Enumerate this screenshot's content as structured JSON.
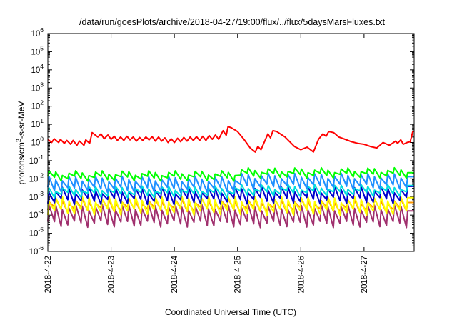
{
  "chart_data": {
    "type": "line",
    "title": "/data/run/goesPlots/archive/2018-04-27/19:00/flux/../flux/5daysMarsFluxes.txt",
    "xlabel": "Coordinated Universal Time (UTC)",
    "ylabel": "protons/cm²-s-sr-MeV",
    "y_scale": "log",
    "ylim_exponent": [
      -6,
      6
    ],
    "y_tick_base": "10",
    "y_tick_exponents": [
      "-6",
      "-5",
      "-4",
      "-3",
      "-2",
      "-1",
      "0",
      "1",
      "2",
      "3",
      "4",
      "5",
      "6"
    ],
    "xlim": [
      "2018-04-22T00:00",
      "2018-04-27T19:00"
    ],
    "x_tick_labels": [
      "2018-4-22",
      "2018-4-23",
      "2018-4-24",
      "2018-4-25",
      "2018-4-26",
      "2018-4-27"
    ],
    "grid": false,
    "legend": "none",
    "series": [
      {
        "color": "#ff0000",
        "x": [
          0.0,
          0.06,
          0.1,
          0.17,
          0.2,
          0.26,
          0.3,
          0.36,
          0.4,
          0.46,
          0.5,
          0.57,
          0.6,
          0.66,
          0.7,
          0.79,
          0.84,
          0.89,
          0.95,
          1.0,
          1.05,
          1.1,
          1.15,
          1.2,
          1.25,
          1.3,
          1.35,
          1.4,
          1.45,
          1.5,
          1.55,
          1.6,
          1.65,
          1.7,
          1.75,
          1.8,
          1.85,
          1.9,
          1.95,
          2.0,
          2.05,
          2.1,
          2.15,
          2.2,
          2.25,
          2.3,
          2.35,
          2.4,
          2.45,
          2.5,
          2.55,
          2.6,
          2.65,
          2.7,
          2.77,
          2.82,
          2.85,
          2.9,
          3.0,
          3.1,
          3.2,
          3.28,
          3.32,
          3.37,
          3.48,
          3.52,
          3.56,
          3.62,
          3.75,
          3.9,
          4.0,
          4.1,
          4.2,
          4.28,
          4.35,
          4.4,
          4.44,
          4.52,
          4.6,
          4.7,
          4.8,
          4.9,
          5.0,
          5.1,
          5.2,
          5.3,
          5.4,
          5.5,
          5.53,
          5.58,
          5.62,
          5.68,
          5.73,
          5.77,
          5.79
        ],
        "values": [
          1.5,
          1.0,
          1.6,
          1.0,
          1.5,
          0.9,
          1.3,
          0.8,
          1.3,
          0.7,
          1.2,
          0.7,
          1.4,
          0.9,
          3.5,
          2.0,
          3.0,
          1.6,
          2.6,
          1.5,
          2.2,
          1.3,
          2.0,
          1.3,
          2.2,
          1.4,
          2.0,
          1.2,
          1.9,
          1.3,
          2.0,
          1.4,
          2.1,
          1.2,
          2.0,
          1.2,
          1.8,
          1.0,
          1.6,
          1.0,
          1.7,
          1.1,
          1.9,
          1.2,
          2.0,
          1.3,
          2.1,
          1.3,
          2.2,
          1.3,
          2.4,
          1.5,
          2.6,
          1.5,
          4.5,
          2.5,
          7.5,
          6.5,
          4.0,
          1.5,
          0.5,
          0.3,
          0.6,
          0.4,
          3.0,
          1.8,
          4.5,
          4.0,
          2.0,
          0.6,
          0.4,
          0.55,
          0.3,
          1.5,
          3.0,
          2.2,
          4.0,
          3.5,
          2.0,
          1.5,
          1.1,
          0.9,
          0.8,
          0.6,
          0.5,
          1.0,
          0.7,
          1.2,
          0.9,
          1.4,
          0.8,
          1.0,
          1.1,
          4.0,
          4.0
        ]
      },
      {
        "color": "#00ff00",
        "period": 0.105,
        "peak_min": 0.015,
        "peak_max": 0.028,
        "trough_ratio": 0.5,
        "level_after_3": 1.45
      },
      {
        "color": "#1e90ff",
        "period": 0.105,
        "peak_min": 0.007,
        "peak_max": 0.014,
        "trough_ratio": 0.25,
        "level_after_3": 1.45
      },
      {
        "color": "#00dddd",
        "period": 0.105,
        "peak_min": 0.002,
        "peak_max": 0.004,
        "trough_ratio": 0.45,
        "level_after_3": 1.2
      },
      {
        "color": "#0000cd",
        "period": 0.105,
        "peak_min": 0.0015,
        "peak_max": 0.0035,
        "trough_ratio": 0.25,
        "level_after_3": 1.1
      },
      {
        "color": "#ffff00",
        "period": 0.105,
        "peak_min": 0.0005,
        "peak_max": 0.0011,
        "trough_ratio": 0.2,
        "level_after_3": 0.95
      },
      {
        "color": "#ff9900",
        "period": 0.105,
        "peak_min": 0.0004,
        "peak_max": 0.0008,
        "trough_ratio": 0.35,
        "level_after_3": 0.95
      },
      {
        "color": "#a0306e",
        "period": 0.105,
        "peak_min": 0.00018,
        "peak_max": 0.0004,
        "trough_ratio": 0.12,
        "level_after_3": 0.95
      }
    ]
  }
}
